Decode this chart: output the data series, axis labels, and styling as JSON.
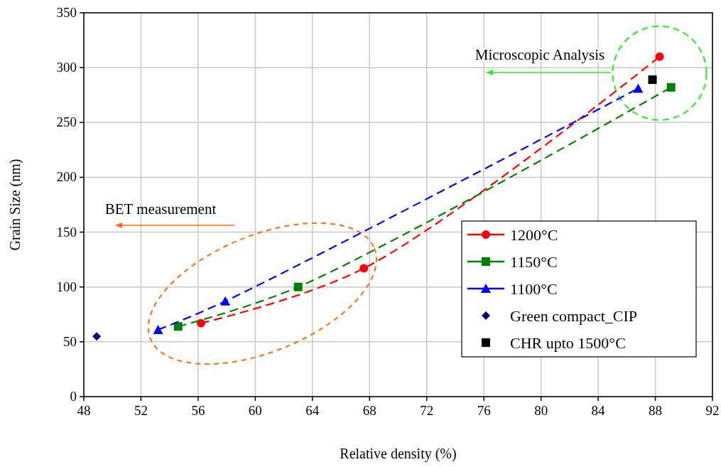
{
  "chart_data": {
    "type": "line",
    "xlabel": "Relative density (%)",
    "ylabel": "Grain Size (nm)",
    "xlim": [
      48,
      92
    ],
    "xticks": [
      48,
      52,
      56,
      60,
      64,
      68,
      72,
      76,
      80,
      84,
      88,
      92
    ],
    "ylim": [
      0,
      350
    ],
    "yticks": [
      0,
      50,
      100,
      150,
      200,
      250,
      300,
      350
    ],
    "grid": true,
    "legend": "right",
    "annotations": [
      "Microscopic Analysis",
      "BET measurement"
    ],
    "series": [
      {
        "name": "1200°C",
        "color": "#ff0000",
        "marker": "circle",
        "line_style": "dashed",
        "x": [
          56.2,
          67.6,
          88.3
        ],
        "values": [
          67,
          117,
          310
        ]
      },
      {
        "name": "1150°C",
        "color": "#008000",
        "marker": "square",
        "line_style": "dashed",
        "x": [
          54.6,
          63.0,
          89.1
        ],
        "values": [
          64,
          100,
          282
        ]
      },
      {
        "name": "1100°C",
        "color": "#0000ff",
        "marker": "triangle",
        "line_style": "dashed",
        "x": [
          53.2,
          57.9,
          86.8
        ],
        "values": [
          61,
          87,
          281
        ]
      },
      {
        "name": "Green compact_CIP",
        "type": "scatter",
        "color": "#000080",
        "marker": "diamond",
        "x": [
          48.9
        ],
        "values": [
          55
        ]
      },
      {
        "name": "CHR upto 1500°C",
        "type": "scatter",
        "color": "#000000",
        "marker": "square",
        "x": [
          87.8
        ],
        "values": [
          289
        ]
      }
    ]
  }
}
